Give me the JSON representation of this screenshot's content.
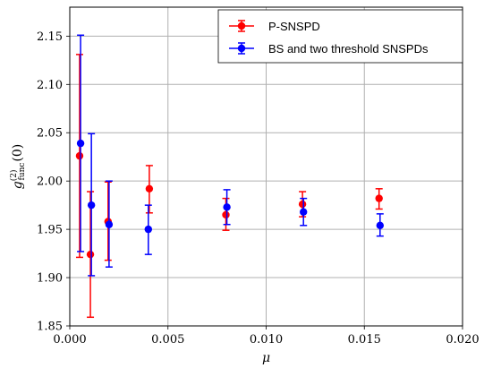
{
  "chart_data": {
    "type": "scatter",
    "xlabel": "μ",
    "ylabel": {
      "base": "g",
      "superscript": "(2)",
      "subscript": "func",
      "suffix": "(0)"
    },
    "xlim": [
      0.0,
      0.02
    ],
    "ylim": [
      1.85,
      2.18
    ],
    "xticks": [
      0.0,
      0.005,
      0.01,
      0.015,
      0.02
    ],
    "xtick_labels": [
      "0.000",
      "0.005",
      "0.010",
      "0.015",
      "0.020"
    ],
    "yticks": [
      1.85,
      1.9,
      1.95,
      2.0,
      2.05,
      2.1,
      2.15
    ],
    "ytick_labels": [
      "1.85",
      "1.90",
      "1.95",
      "2.00",
      "2.05",
      "2.10",
      "2.15"
    ],
    "grid": true,
    "legend_position": "top-right",
    "series": [
      {
        "name": "P-SNSPD",
        "color": "#ff0000",
        "points": [
          {
            "x": 0.0005,
            "y": 2.026,
            "ylow": 1.921,
            "yhigh": 2.131
          },
          {
            "x": 0.00105,
            "y": 1.924,
            "ylow": 1.859,
            "yhigh": 1.989
          },
          {
            "x": 0.00195,
            "y": 1.958,
            "ylow": 1.918,
            "yhigh": 1.999
          },
          {
            "x": 0.00405,
            "y": 1.992,
            "ylow": 1.967,
            "yhigh": 2.016
          },
          {
            "x": 0.00795,
            "y": 1.965,
            "ylow": 1.949,
            "yhigh": 1.982
          },
          {
            "x": 0.01185,
            "y": 1.976,
            "ylow": 1.963,
            "yhigh": 1.989
          },
          {
            "x": 0.01575,
            "y": 1.982,
            "ylow": 1.971,
            "yhigh": 1.992
          }
        ]
      },
      {
        "name": "BS and two threshold SNSPDs",
        "color": "#0000ff",
        "points": [
          {
            "x": 0.00055,
            "y": 2.039,
            "ylow": 1.927,
            "yhigh": 2.151
          },
          {
            "x": 0.0011,
            "y": 1.975,
            "ylow": 1.902,
            "yhigh": 2.049
          },
          {
            "x": 0.002,
            "y": 1.955,
            "ylow": 1.911,
            "yhigh": 2.0
          },
          {
            "x": 0.004,
            "y": 1.95,
            "ylow": 1.924,
            "yhigh": 1.975
          },
          {
            "x": 0.008,
            "y": 1.973,
            "ylow": 1.955,
            "yhigh": 1.991
          },
          {
            "x": 0.0119,
            "y": 1.968,
            "ylow": 1.954,
            "yhigh": 1.982
          },
          {
            "x": 0.0158,
            "y": 1.954,
            "ylow": 1.943,
            "yhigh": 1.966
          }
        ]
      }
    ]
  }
}
